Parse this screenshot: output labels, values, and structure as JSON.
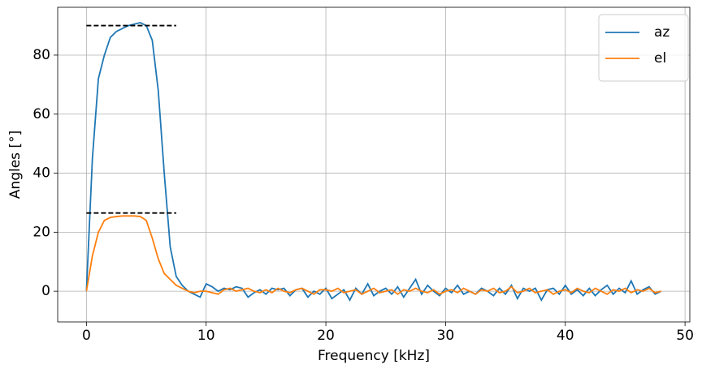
{
  "chart_data": {
    "type": "line",
    "xlabel": "Frequency [kHz]",
    "ylabel": "Angles [°]",
    "x": [
      0,
      0.5,
      1,
      1.5,
      2,
      2.5,
      3,
      3.5,
      4,
      4.5,
      5,
      5.5,
      6,
      6.5,
      7,
      7.5,
      8,
      8.5,
      9,
      9.5,
      10,
      10.5,
      11,
      11.5,
      12,
      12.5,
      13,
      13.5,
      14,
      14.5,
      15,
      15.5,
      16,
      16.5,
      17,
      17.5,
      18,
      18.5,
      19,
      19.5,
      20,
      20.5,
      21,
      21.5,
      22,
      22.5,
      23,
      23.5,
      24,
      24.5,
      25,
      25.5,
      26,
      26.5,
      27,
      27.5,
      28,
      28.5,
      29,
      29.5,
      30,
      30.5,
      31,
      31.5,
      32,
      32.5,
      33,
      33.5,
      34,
      34.5,
      35,
      35.5,
      36,
      36.5,
      37,
      37.5,
      38,
      38.5,
      39,
      39.5,
      40,
      40.5,
      41,
      41.5,
      42,
      42.5,
      43,
      43.5,
      44,
      44.5,
      45,
      45.5,
      46,
      46.5,
      47,
      47.5,
      48
    ],
    "series": [
      {
        "name": "az",
        "color": "#1f77b4",
        "values": [
          0,
          45,
          72,
          80,
          86,
          88,
          89,
          90,
          90.5,
          91,
          90,
          85,
          68,
          40,
          15,
          5,
          2,
          0,
          -1,
          -2,
          2.5,
          1.5,
          0,
          1,
          0.5,
          1.5,
          1,
          -2,
          -0.5,
          0.5,
          -1,
          1,
          0.5,
          1,
          -1.5,
          0.5,
          1,
          -2,
          0,
          -1,
          1,
          -2.5,
          -1,
          0.5,
          -3,
          1,
          -1,
          2.5,
          -1.5,
          0,
          1,
          -1,
          1.5,
          -2,
          1,
          4,
          -1,
          2,
          0,
          -1.5,
          1,
          -0.5,
          2,
          -1,
          0,
          -1,
          1,
          0,
          -1.5,
          1,
          -1,
          2,
          -2.5,
          1,
          0,
          1,
          -3,
          0.5,
          1,
          -1,
          2,
          -1,
          0.5,
          -1.5,
          1,
          -1.5,
          0.5,
          2,
          -1,
          1,
          -0.5,
          3.5,
          -1,
          0.5,
          1.5,
          -1,
          0
        ]
      },
      {
        "name": "el",
        "color": "#ff7f0e",
        "values": [
          0,
          12,
          20,
          24,
          25,
          25.3,
          25.5,
          25.5,
          25.5,
          25.3,
          24,
          18,
          11,
          6,
          4,
          2,
          1,
          0,
          -0.5,
          0,
          0,
          -0.5,
          -1,
          0.5,
          1,
          0,
          0.5,
          1,
          0,
          -0.5,
          0.5,
          -0.5,
          1,
          0,
          -0.5,
          0.5,
          1,
          0,
          -1,
          0.5,
          0.5,
          0,
          1,
          -0.5,
          0,
          0.5,
          -1,
          0,
          1,
          -0.5,
          0,
          0.5,
          -1,
          0.5,
          0,
          1,
          0,
          -0.5,
          0.5,
          -1,
          0,
          0.5,
          -0.5,
          1,
          0,
          -1,
          0.5,
          0,
          1,
          -0.5,
          0,
          1.5,
          -0.5,
          0,
          1,
          -0.5,
          0,
          0.5,
          -1,
          0,
          0.5,
          -0.5,
          1,
          0,
          -0.5,
          1,
          0,
          -1,
          0.5,
          0,
          1,
          -0.5,
          0.5,
          0,
          1,
          -0.5,
          0
        ]
      }
    ],
    "hlines": [
      {
        "y": 90,
        "xmin": 0,
        "xmax": 7.5,
        "color": "#000000",
        "dashed": true
      },
      {
        "y": 26.5,
        "xmin": 0,
        "xmax": 7.5,
        "color": "#000000",
        "dashed": true
      }
    ],
    "xlim": [
      -2.4,
      50.4
    ],
    "xticks": [
      0,
      10,
      20,
      30,
      40,
      50
    ],
    "ylim": [
      -10.4,
      96.2
    ],
    "yticks": [
      0,
      20,
      40,
      60,
      80
    ],
    "grid": true,
    "legend": "upper right"
  }
}
